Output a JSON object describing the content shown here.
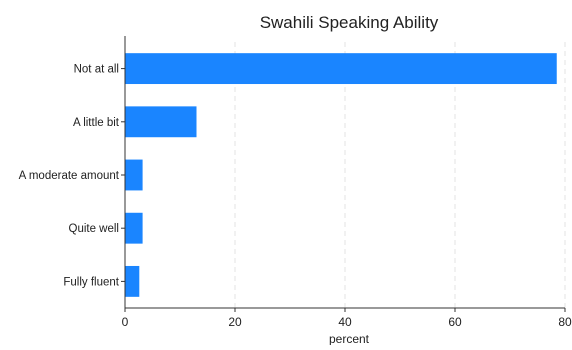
{
  "chart_data": {
    "type": "bar",
    "orientation": "horizontal",
    "title": "Swahili Speaking Ability",
    "xlabel": "percent",
    "ylabel": "",
    "categories": [
      "Not at all",
      "A little bit",
      "A moderate amount",
      "Quite well",
      "Fully fluent"
    ],
    "values": [
      78.5,
      13,
      3.2,
      3.2,
      2.6
    ],
    "xlim": [
      0,
      80
    ],
    "xticks": [
      0,
      20,
      40,
      60,
      80
    ],
    "grid": "vertical-dashed",
    "legend": "none",
    "bar_color": "#1a85ff"
  }
}
